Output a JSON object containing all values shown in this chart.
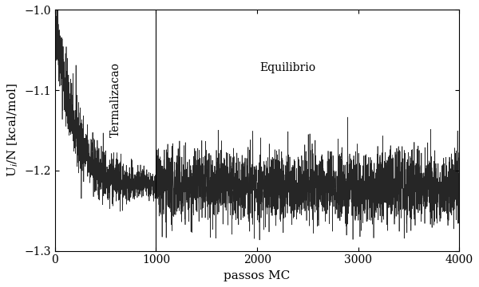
{
  "ylabel": "U$_i$/N [kcal/mol]",
  "xlabel": "passos MC",
  "xlim": [
    0,
    4000
  ],
  "ylim": [
    -1.3,
    -1.0
  ],
  "yticks": [
    -1.3,
    -1.2,
    -1.1,
    -1.0
  ],
  "xticks": [
    0,
    1000,
    2000,
    3000,
    4000
  ],
  "vline_x": 1000,
  "termalizacao_label": "Termalizacao",
  "termalizacao_x": 600,
  "termalizacao_y": -1.065,
  "equilibrio_label": "Equilibrio",
  "equilibrio_x": 2300,
  "equilibrio_y": -1.065,
  "line_color": "black",
  "vline_color": "black",
  "background_color": "white",
  "seed": 42,
  "n_points": 4001,
  "therma_end": 1000,
  "start_energy": -1.0,
  "equil_energy": -1.22,
  "noise_therma": 0.025,
  "noise_equil": 0.022,
  "figsize": [
    6.0,
    3.6
  ],
  "dpi": 100
}
